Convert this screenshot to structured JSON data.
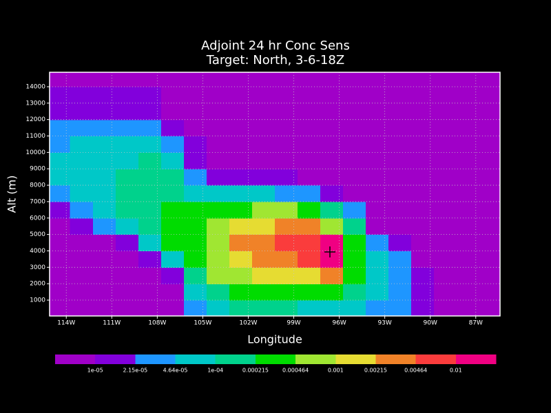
{
  "chart_data": {
    "type": "contour",
    "title": [
      "Adjoint 24 hr Conc Sens",
      "Target: North, 3-6-18Z"
    ],
    "x_label": "Longitude",
    "y_label": "Alt (m)",
    "xlim": [
      -115.1,
      -85.4
    ],
    "ylim": [
      36,
      14880
    ],
    "xticks": [
      {
        "value": -114,
        "label": "114W"
      },
      {
        "value": -111,
        "label": "111W"
      },
      {
        "value": -108,
        "label": "108W"
      },
      {
        "value": -105,
        "label": "105W"
      },
      {
        "value": -102,
        "label": "102W"
      },
      {
        "value": -99,
        "label": "99W"
      },
      {
        "value": -96,
        "label": "96W"
      },
      {
        "value": -93,
        "label": "93W"
      },
      {
        "value": -90,
        "label": "90W"
      },
      {
        "value": -87,
        "label": "87W"
      }
    ],
    "yticks": [
      1000,
      2000,
      3000,
      4000,
      5000,
      6000,
      7000,
      8000,
      9000,
      10000,
      11000,
      12000,
      13000,
      14000
    ],
    "grid": true,
    "levels": [
      {
        "value": 1e-05,
        "label": "1e-05"
      },
      {
        "value": 2.15e-05,
        "label": "2.15e-05"
      },
      {
        "value": 4.64e-05,
        "label": "4.64e-05"
      },
      {
        "value": 0.0001,
        "label": "1e-04"
      },
      0.000215,
      0.000464,
      0.001,
      0.00215,
      0.00464,
      0.01
    ],
    "colors": [
      "#a000c8",
      "#8200dc",
      "#1e96ff",
      "#00c8c8",
      "#00d28c",
      "#00dc00",
      "#a0e632",
      "#e6dc32",
      "#f08228",
      "#fa3c3c",
      "#f00082"
    ],
    "x": [
      -114.5,
      -113,
      -111.5,
      -110,
      -108.5,
      -107,
      -105.5,
      -104,
      -102.5,
      -101,
      -99.5,
      -98,
      -96.5,
      -95,
      -93.5,
      -92,
      -90.5,
      -89,
      -87.5,
      -86
    ],
    "y": [
      500,
      1500,
      2500,
      3500,
      4500,
      5500,
      6500,
      7500,
      8500,
      9500,
      10500,
      11500,
      12500,
      13500,
      14500
    ],
    "z": [
      [
        5e-06,
        5e-06,
        5e-06,
        5e-06,
        5e-06,
        5e-06,
        3e-05,
        7e-05,
        0.00015,
        0.00015,
        0.00015,
        7e-05,
        7e-05,
        7e-05,
        3e-05,
        3e-05,
        1.5e-05,
        5e-06,
        5e-06,
        5e-06
      ],
      [
        5e-06,
        5e-06,
        5e-06,
        5e-06,
        5e-06,
        5e-06,
        7e-05,
        0.00015,
        0.0003,
        0.0003,
        0.0003,
        0.0003,
        0.0003,
        0.00015,
        7e-05,
        3e-05,
        1.5e-05,
        5e-06,
        5e-06,
        5e-06
      ],
      [
        5e-06,
        5e-06,
        5e-06,
        5e-06,
        5e-06,
        1.5e-05,
        0.00015,
        0.0007,
        0.0007,
        0.0015,
        0.0015,
        0.0015,
        0.003,
        0.0003,
        7e-05,
        3e-05,
        1.5e-05,
        5e-06,
        5e-06,
        5e-06
      ],
      [
        5e-06,
        5e-06,
        5e-06,
        5e-06,
        1.5e-05,
        7e-05,
        0.0003,
        0.0007,
        0.0015,
        0.003,
        0.003,
        0.007,
        0.015,
        0.0003,
        7e-05,
        3e-05,
        5e-06,
        5e-06,
        5e-06,
        5e-06
      ],
      [
        5e-06,
        5e-06,
        5e-06,
        1.5e-05,
        7e-05,
        0.0003,
        0.0003,
        0.0007,
        0.003,
        0.003,
        0.007,
        0.007,
        0.015,
        0.0003,
        3e-05,
        1.5e-05,
        5e-06,
        5e-06,
        5e-06,
        5e-06
      ],
      [
        5e-06,
        1.5e-05,
        3e-05,
        7e-05,
        0.00015,
        0.0003,
        0.0003,
        0.0007,
        0.0015,
        0.0015,
        0.003,
        0.003,
        0.0007,
        0.00015,
        5e-06,
        5e-06,
        5e-06,
        5e-06,
        5e-06,
        5e-06
      ],
      [
        1.5e-05,
        3e-05,
        7e-05,
        0.00015,
        0.00015,
        0.0003,
        0.0003,
        0.0003,
        0.0003,
        0.0007,
        0.0007,
        0.0003,
        0.00015,
        3e-05,
        5e-06,
        5e-06,
        5e-06,
        5e-06,
        5e-06,
        5e-06
      ],
      [
        3e-05,
        7e-05,
        7e-05,
        0.00015,
        0.00015,
        0.00015,
        7e-05,
        7e-05,
        7e-05,
        7e-05,
        3e-05,
        3e-05,
        1.5e-05,
        5e-06,
        5e-06,
        5e-06,
        5e-06,
        5e-06,
        5e-06,
        5e-06
      ],
      [
        7e-05,
        7e-05,
        7e-05,
        0.00015,
        0.00015,
        0.00015,
        3e-05,
        1.5e-05,
        1.5e-05,
        1.5e-05,
        1.5e-05,
        5e-06,
        5e-06,
        5e-06,
        5e-06,
        5e-06,
        5e-06,
        5e-06,
        5e-06,
        5e-06
      ],
      [
        7e-05,
        7e-05,
        7e-05,
        7e-05,
        0.00015,
        7e-05,
        1.5e-05,
        5e-06,
        5e-06,
        5e-06,
        5e-06,
        5e-06,
        5e-06,
        5e-06,
        5e-06,
        5e-06,
        5e-06,
        5e-06,
        5e-06,
        5e-06
      ],
      [
        3e-05,
        7e-05,
        7e-05,
        7e-05,
        7e-05,
        3e-05,
        1.5e-05,
        5e-06,
        5e-06,
        5e-06,
        5e-06,
        5e-06,
        5e-06,
        5e-06,
        5e-06,
        5e-06,
        5e-06,
        5e-06,
        5e-06,
        5e-06
      ],
      [
        3e-05,
        3e-05,
        3e-05,
        3e-05,
        3e-05,
        1.5e-05,
        5e-06,
        5e-06,
        5e-06,
        5e-06,
        5e-06,
        5e-06,
        5e-06,
        5e-06,
        5e-06,
        5e-06,
        5e-06,
        5e-06,
        5e-06,
        5e-06
      ],
      [
        1.5e-05,
        1.5e-05,
        1.5e-05,
        1.5e-05,
        1.5e-05,
        5e-06,
        5e-06,
        5e-06,
        5e-06,
        5e-06,
        5e-06,
        5e-06,
        5e-06,
        5e-06,
        5e-06,
        5e-06,
        5e-06,
        5e-06,
        5e-06,
        5e-06
      ],
      [
        1.5e-05,
        1.5e-05,
        1.5e-05,
        1.5e-05,
        1.5e-05,
        5e-06,
        5e-06,
        5e-06,
        5e-06,
        5e-06,
        5e-06,
        5e-06,
        5e-06,
        5e-06,
        5e-06,
        5e-06,
        5e-06,
        5e-06,
        5e-06,
        5e-06
      ],
      [
        5e-06,
        5e-06,
        5e-06,
        5e-06,
        5e-06,
        5e-06,
        5e-06,
        5e-06,
        5e-06,
        5e-06,
        5e-06,
        5e-06,
        5e-06,
        5e-06,
        5e-06,
        5e-06,
        5e-06,
        5e-06,
        5e-06,
        5e-06
      ]
    ]
  }
}
